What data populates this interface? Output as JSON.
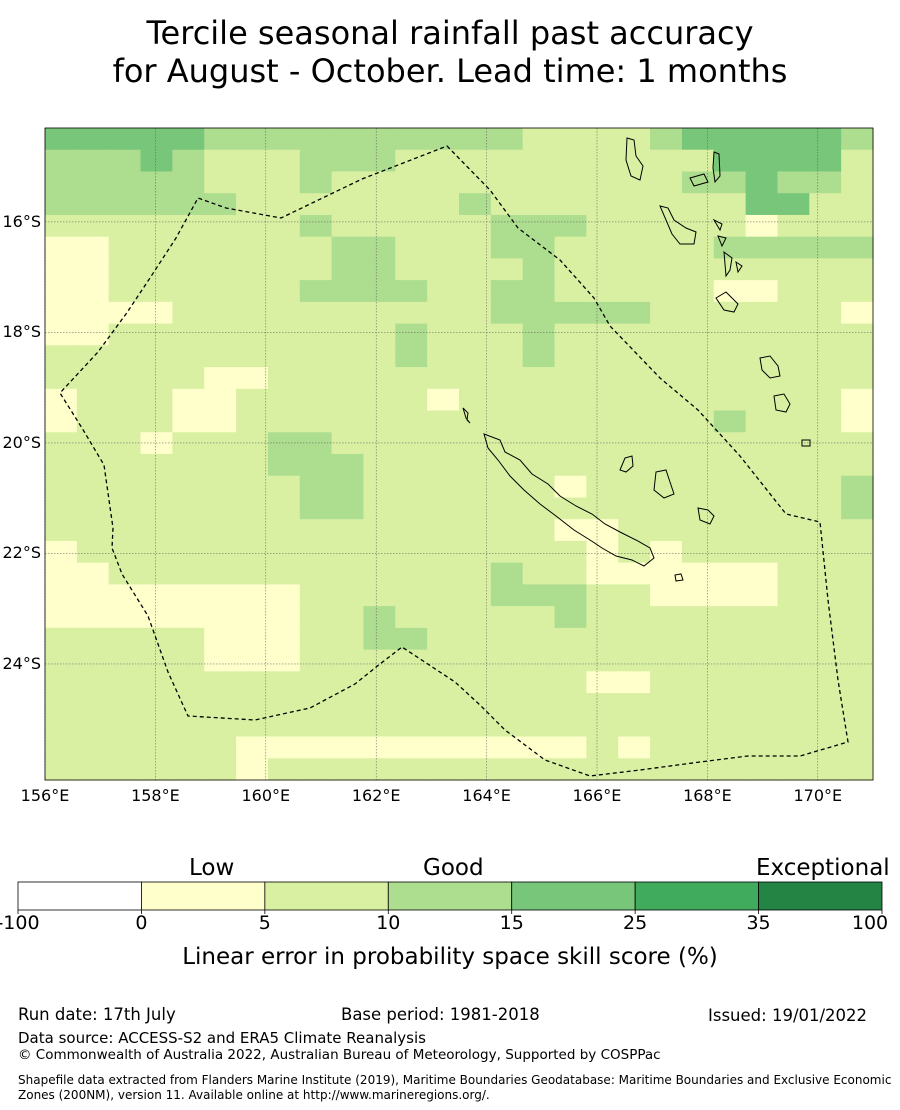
{
  "title": {
    "line1": "Tercile seasonal rainfall past accuracy",
    "line2": "for August - October. Lead time: 1 months"
  },
  "map": {
    "lat_labels": [
      "16°S",
      "18°S",
      "20°S",
      "22°S",
      "24°S"
    ],
    "lon_labels": [
      "156°E",
      "158°E",
      "160°E",
      "162°E",
      "164°E",
      "166°E",
      "168°E",
      "170°E"
    ],
    "extent": {
      "lon": [
        156,
        171
      ],
      "lat": [
        -26.1,
        -14.3
      ]
    },
    "cell_size_deg": 0.55,
    "colors": [
      "#ffffff",
      "#ffffcc",
      "#d9f0a3",
      "#addd8e",
      "#78c679",
      "#41ab5d",
      "#238443"
    ],
    "grid": [
      "44444333333333322223444443",
      "33343222333222222222244442",
      "33333222322222222222334332",
      "33333322222223222222224422",
      "22222222322222333222221222",
      "11222222233222332222233333",
      "11222222233222232222222222",
      "11222222333322332222211222",
      "11112222222222333332222221",
      "11222222222322232222222222",
      "22222222222322232222222222",
      "22222112222222222222222222",
      "12221122222212222222222221",
      "12221122222222222222232221",
      "22212223322222222222222222",
      "22222223332222222222222222",
      "22222222332222221222222223",
      "22222222332222222222222223",
      "22222222222222221122222222",
      "12222222222222222121222222",
      "11222222222222322111111222",
      "11111111222222333221111222",
      "11111111223222223222222222",
      "22222111223322222222222222",
      "22222111222222222222222222",
      "22222222222222222112222222",
      "22222222222222222222222222",
      "22222222222222222222222222",
      "22222211111111111212222222",
      "22222212222222222222222222"
    ]
  },
  "legend": {
    "categories": [
      "Low",
      "Good",
      "Exceptional"
    ],
    "ticks": [
      "-100",
      "0",
      "5",
      "10",
      "15",
      "25",
      "35",
      "100"
    ],
    "bands": [
      {
        "from": -100,
        "to": 0,
        "color": "#ffffff"
      },
      {
        "from": 0,
        "to": 5,
        "color": "#ffffcc"
      },
      {
        "from": 5,
        "to": 10,
        "color": "#d9f0a3"
      },
      {
        "from": 10,
        "to": 15,
        "color": "#addd8e"
      },
      {
        "from": 15,
        "to": 25,
        "color": "#78c679"
      },
      {
        "from": 25,
        "to": 35,
        "color": "#41ab5d"
      },
      {
        "from": 35,
        "to": 100,
        "color": "#238443"
      }
    ],
    "title": "Linear error in probability space skill score (%)"
  },
  "footer": {
    "run_date": "Run date: 17th July",
    "base_period": "Base period: 1981-2018",
    "issued": "Issued: 19/01/2022",
    "data_source": "Data source: ACCESS-S2 and ERA5 Climate Reanalysis",
    "copyright": "© Commonwealth of Australia 2022, Australian Bureau of Meteorology, Supported by COSPPac",
    "shapefile": "Shapefile data extracted from Flanders Marine Institute (2019), Maritime Boundaries Geodatabase: Maritime Boundaries and Exclusive Economic Zones (200NM), version 11. Available online at http://www.marineregions.org/."
  }
}
